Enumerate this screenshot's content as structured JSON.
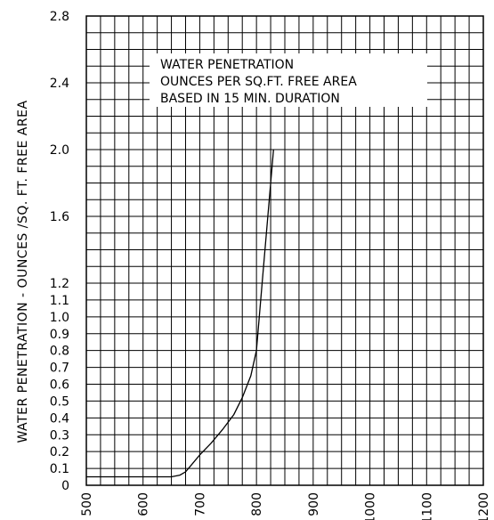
{
  "chart_data": {
    "type": "line",
    "title": "",
    "xlabel": "",
    "ylabel": "WATER PENETRATION - OUNCES /SQ. FT. FREE AREA",
    "note_lines": [
      "WATER PENETRATION",
      "OUNCES PER SQ.FT. FREE AREA",
      "BASED IN 15 MIN. DURATION"
    ],
    "x_ticks": [
      "500",
      "600",
      "700",
      "800",
      "900",
      "1000",
      "1100",
      "1200"
    ],
    "y_ticks": [
      "0",
      "0.1",
      "0.2",
      "0.3",
      "0.4",
      "0.5",
      "0.6",
      "0.7",
      "0.8",
      "0.9",
      "1.0",
      "1.1",
      "1.2",
      "1.6",
      "2.0",
      "2.4",
      "2.8"
    ],
    "xlim": [
      500,
      1200
    ],
    "ylim": [
      0,
      2.8
    ],
    "grid": true,
    "series": [
      {
        "x": [
          500,
          650,
          665,
          675,
          685,
          700,
          720,
          740,
          760,
          775,
          790,
          800,
          810,
          820,
          830
        ],
        "y": [
          0.05,
          0.05,
          0.06,
          0.08,
          0.12,
          0.18,
          0.25,
          0.33,
          0.42,
          0.52,
          0.65,
          0.8,
          1.2,
          1.6,
          2.0
        ]
      }
    ]
  }
}
